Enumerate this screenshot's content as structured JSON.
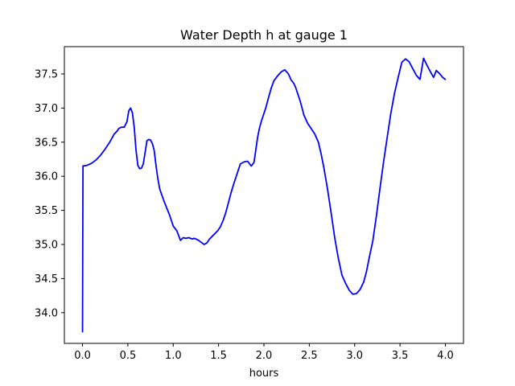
{
  "chart_data": {
    "type": "line",
    "title": "Water Depth h at gauge 1",
    "xlabel": "hours",
    "ylabel": "",
    "xlim": [
      -0.2,
      4.2
    ],
    "ylim": [
      33.55,
      37.9
    ],
    "xticks": [
      0.0,
      0.5,
      1.0,
      1.5,
      2.0,
      2.5,
      3.0,
      3.5,
      4.0
    ],
    "xtick_labels": [
      "0.0",
      "0.5",
      "1.0",
      "1.5",
      "2.0",
      "2.5",
      "3.0",
      "3.5",
      "4.0"
    ],
    "yticks": [
      34.0,
      34.5,
      35.0,
      35.5,
      36.0,
      36.5,
      37.0,
      37.5
    ],
    "ytick_labels": [
      "34.0",
      "34.5",
      "35.0",
      "35.5",
      "36.0",
      "36.5",
      "37.0",
      "37.5"
    ],
    "grid": false,
    "series": [
      {
        "name": "",
        "color": "#0000ff",
        "x": [
          0.0,
          0.005,
          0.05,
          0.1,
          0.15,
          0.2,
          0.25,
          0.3,
          0.35,
          0.38,
          0.4,
          0.43,
          0.46,
          0.49,
          0.51,
          0.53,
          0.55,
          0.57,
          0.59,
          0.61,
          0.63,
          0.65,
          0.67,
          0.69,
          0.71,
          0.73,
          0.75,
          0.77,
          0.79,
          0.81,
          0.83,
          0.85,
          0.87,
          0.9,
          0.93,
          0.96,
          1.0,
          1.04,
          1.08,
          1.11,
          1.14,
          1.17,
          1.19,
          1.21,
          1.23,
          1.25,
          1.28,
          1.31,
          1.34,
          1.37,
          1.4,
          1.43,
          1.46,
          1.49,
          1.52,
          1.55,
          1.58,
          1.61,
          1.64,
          1.67,
          1.7,
          1.74,
          1.78,
          1.82,
          1.86,
          1.89,
          1.91,
          1.93,
          1.95,
          1.97,
          1.99,
          2.02,
          2.05,
          2.08,
          2.11,
          2.15,
          2.19,
          2.23,
          2.27,
          2.3,
          2.33,
          2.35,
          2.37,
          2.4,
          2.44,
          2.48,
          2.52,
          2.56,
          2.6,
          2.63,
          2.66,
          2.7,
          2.74,
          2.78,
          2.82,
          2.86,
          2.9,
          2.94,
          2.98,
          3.02,
          3.06,
          3.1,
          3.13,
          3.16,
          3.2,
          3.24,
          3.28,
          3.32,
          3.36,
          3.4,
          3.44,
          3.48,
          3.52,
          3.56,
          3.6,
          3.64,
          3.68,
          3.72,
          3.76,
          3.8,
          3.84,
          3.87,
          3.9,
          3.94,
          3.97,
          4.0
        ],
        "y": [
          33.72,
          36.15,
          36.16,
          36.19,
          36.24,
          36.31,
          36.4,
          36.5,
          36.62,
          36.66,
          36.7,
          36.72,
          36.72,
          36.8,
          36.96,
          37.0,
          36.93,
          36.72,
          36.38,
          36.16,
          36.11,
          36.12,
          36.18,
          36.35,
          36.52,
          36.54,
          36.53,
          36.48,
          36.38,
          36.16,
          35.97,
          35.82,
          35.74,
          35.63,
          35.53,
          35.43,
          35.27,
          35.2,
          35.06,
          35.1,
          35.09,
          35.1,
          35.09,
          35.08,
          35.09,
          35.08,
          35.06,
          35.03,
          35.0,
          35.02,
          35.08,
          35.12,
          35.16,
          35.2,
          35.26,
          35.35,
          35.47,
          35.62,
          35.77,
          35.9,
          36.02,
          36.18,
          36.21,
          36.22,
          36.15,
          36.2,
          36.38,
          36.57,
          36.7,
          36.8,
          36.88,
          37.0,
          37.15,
          37.29,
          37.4,
          37.47,
          37.53,
          37.56,
          37.5,
          37.41,
          37.36,
          37.3,
          37.22,
          37.1,
          36.9,
          36.78,
          36.7,
          36.62,
          36.5,
          36.33,
          36.13,
          35.82,
          35.47,
          35.1,
          34.8,
          34.55,
          34.43,
          34.33,
          34.27,
          34.28,
          34.34,
          34.45,
          34.6,
          34.8,
          35.05,
          35.42,
          35.83,
          36.22,
          36.58,
          36.93,
          37.22,
          37.45,
          37.67,
          37.72,
          37.68,
          37.58,
          37.48,
          37.42,
          37.73,
          37.62,
          37.52,
          37.45,
          37.55,
          37.5,
          37.45,
          37.42
        ]
      }
    ]
  }
}
